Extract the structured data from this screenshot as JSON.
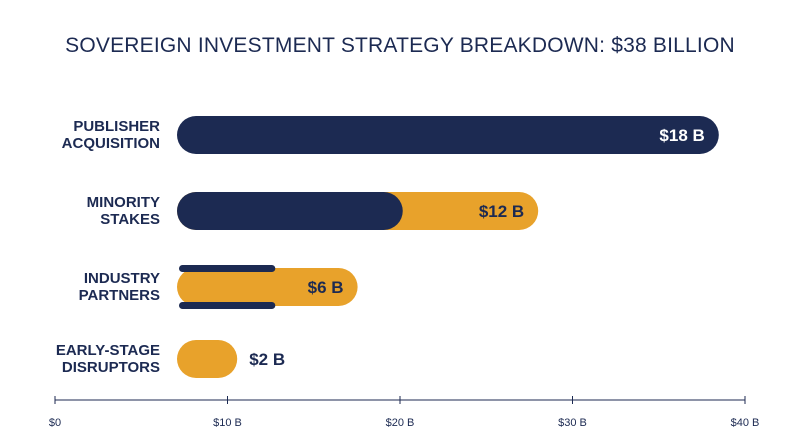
{
  "colors": {
    "navy": "#1c2a52",
    "gold": "#e8a22b",
    "white": "#ffffff"
  },
  "chart_data": {
    "type": "bar",
    "orientation": "horizontal",
    "title": "SOVEREIGN INVESTMENT STRATEGY BREAKDOWN: $38 BILLION",
    "xlabel": "",
    "ylabel": "",
    "xlim": [
      0,
      40
    ],
    "ticks": [
      {
        "value": 0,
        "label": "$0"
      },
      {
        "value": 10,
        "label": "$10 B"
      },
      {
        "value": 20,
        "label": "$20 B"
      },
      {
        "value": 30,
        "label": "$30 B"
      },
      {
        "value": 40,
        "label": "$40 B"
      }
    ],
    "categories": [
      {
        "label_lines": [
          "PUBLISHER",
          "ACQUISITION"
        ],
        "value": 18,
        "value_label": "$18 B",
        "style": "navy-full"
      },
      {
        "label_lines": [
          "MINORITY",
          "STAKES"
        ],
        "value": 12,
        "value_label": "$12 B",
        "style": "navy-gold-split",
        "navy_portion": 7.5
      },
      {
        "label_lines": [
          "INDUSTRY",
          "PARTNERS"
        ],
        "value": 6,
        "value_label": "$6 B",
        "style": "gold-with-navy-rails",
        "navy_portion": 3.2
      },
      {
        "label_lines": [
          "EARLY-STAGE",
          "DISRUPTORS"
        ],
        "value": 2,
        "value_label": "$2 B",
        "style": "gold-full"
      }
    ],
    "grid": false,
    "legend": "none"
  }
}
